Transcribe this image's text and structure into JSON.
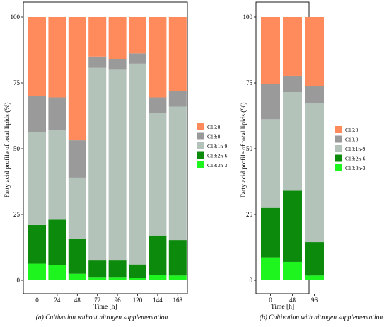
{
  "colors": {
    "C16:0": "#FF8A5B",
    "C18:0": "#9A9A9A",
    "C18:1n-9": "#B4C3BA",
    "C18:2n-6": "#0B8A0B",
    "C18:3n-3": "#1EF51E"
  },
  "chart_data": [
    {
      "type": "bar",
      "stacked": true,
      "panel": "a",
      "caption": "(a) Cultivation without nitrogen supplementation",
      "xlabel": "Time [h]",
      "ylabel": "Fatty acid profile of total lipids (%)",
      "ylim": [
        0,
        100
      ],
      "yticks": [
        "0",
        "25",
        "50",
        "75",
        "100"
      ],
      "categories": [
        "0",
        "24",
        "48",
        "72",
        "96",
        "120",
        "144",
        "168"
      ],
      "series": [
        {
          "name": "C18:3n-3",
          "values": [
            6.3,
            5.8,
            2.5,
            1.0,
            1.0,
            0.8,
            2.0,
            1.8
          ]
        },
        {
          "name": "C18:2n-6",
          "values": [
            14.7,
            17.2,
            13.3,
            6.5,
            6.5,
            5.2,
            15.0,
            13.5
          ]
        },
        {
          "name": "C18:1n-9",
          "values": [
            35.2,
            34.0,
            23.2,
            73.2,
            72.5,
            76.3,
            46.5,
            50.7
          ]
        },
        {
          "name": "C18:0",
          "values": [
            13.8,
            12.5,
            14.2,
            4.3,
            4.0,
            3.9,
            6.0,
            5.8
          ]
        },
        {
          "name": "C16:0",
          "values": [
            30.0,
            30.5,
            46.8,
            15.0,
            16.0,
            13.8,
            30.5,
            28.2
          ]
        }
      ],
      "legend": [
        "C16:0",
        "C18:0",
        "C18:1n-9",
        "C18:2n-6",
        "C18:3n-3"
      ],
      "legend_position": "right"
    },
    {
      "type": "bar",
      "stacked": true,
      "panel": "b",
      "caption": "(b) Cultivation with nitrogen supplementation",
      "xlabel": "Time [h]",
      "ylabel": "Fatty acid profile of total lipids (%)",
      "ylim": [
        0,
        100
      ],
      "yticks": [
        "0",
        "25",
        "50",
        "75",
        "100"
      ],
      "categories": [
        "0",
        "48",
        "96"
      ],
      "series": [
        {
          "name": "C18:3n-3",
          "values": [
            8.7,
            7.0,
            1.8
          ]
        },
        {
          "name": "C18:2n-6",
          "values": [
            18.8,
            27.0,
            12.7
          ]
        },
        {
          "name": "C18:1n-9",
          "values": [
            33.7,
            37.5,
            52.8
          ]
        },
        {
          "name": "C18:0",
          "values": [
            13.3,
            6.2,
            6.5
          ]
        },
        {
          "name": "C16:0",
          "values": [
            25.5,
            22.3,
            26.2
          ]
        }
      ],
      "legend": [
        "C16:0",
        "C18:0",
        "C18:1n-9",
        "C18:2n-6",
        "C18:3n-3"
      ],
      "legend_position": "right"
    }
  ]
}
